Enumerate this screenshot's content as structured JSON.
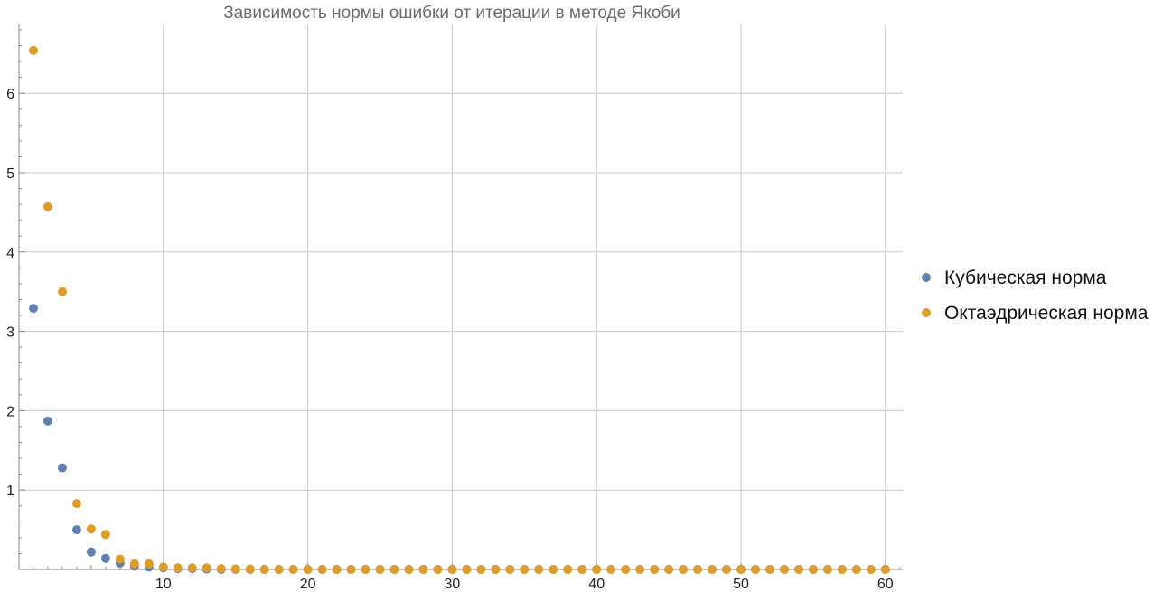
{
  "chart_data": {
    "type": "scatter",
    "title": "Зависимость нормы ошибки от итерации в методе Якоби",
    "xlabel": "",
    "ylabel": "",
    "xlim": [
      0,
      61
    ],
    "ylim": [
      0,
      6.9
    ],
    "x_ticks": [
      10,
      20,
      30,
      40,
      50,
      60
    ],
    "y_ticks": [
      1,
      2,
      3,
      4,
      5,
      6
    ],
    "grid": true,
    "legend_position": "right",
    "series": [
      {
        "name": "Кубическая норма",
        "color": "#5e81b5",
        "x": [
          1,
          2,
          3,
          4,
          5,
          6,
          7,
          8,
          9,
          10,
          11,
          12,
          13,
          14,
          15,
          16,
          17,
          18,
          19,
          20,
          21,
          22,
          23,
          24,
          25,
          26,
          27,
          28,
          29,
          30,
          31,
          32,
          33,
          34,
          35,
          36,
          37,
          38,
          39,
          40,
          41,
          42,
          43,
          44,
          45,
          46,
          47,
          48,
          49,
          50,
          51,
          52,
          53,
          54,
          55,
          56,
          57,
          58,
          59,
          60
        ],
        "y": [
          3.29,
          1.87,
          1.28,
          0.5,
          0.22,
          0.14,
          0.08,
          0.04,
          0.03,
          0.02,
          0.01,
          0.01,
          0.005,
          0,
          0,
          0,
          0,
          0,
          0,
          0,
          0,
          0,
          0,
          0,
          0,
          0,
          0,
          0,
          0,
          0,
          0,
          0,
          0,
          0,
          0,
          0,
          0,
          0,
          0,
          0,
          0,
          0,
          0,
          0,
          0,
          0,
          0,
          0,
          0,
          0,
          0,
          0,
          0,
          0,
          0,
          0,
          0,
          0,
          0,
          0
        ]
      },
      {
        "name": "Октаэдрическая норма",
        "color": "#e19c24",
        "x": [
          1,
          2,
          3,
          4,
          5,
          6,
          7,
          8,
          9,
          10,
          11,
          12,
          13,
          14,
          15,
          16,
          17,
          18,
          19,
          20,
          21,
          22,
          23,
          24,
          25,
          26,
          27,
          28,
          29,
          30,
          31,
          32,
          33,
          34,
          35,
          36,
          37,
          38,
          39,
          40,
          41,
          42,
          43,
          44,
          45,
          46,
          47,
          48,
          49,
          50,
          51,
          52,
          53,
          54,
          55,
          56,
          57,
          58,
          59,
          60
        ],
        "y": [
          6.54,
          4.57,
          3.5,
          0.83,
          0.51,
          0.44,
          0.13,
          0.07,
          0.07,
          0.03,
          0.02,
          0.02,
          0.02,
          0.01,
          0.005,
          0.005,
          0,
          0,
          0,
          0,
          0,
          0,
          0,
          0,
          0,
          0,
          0,
          0,
          0,
          0,
          0,
          0,
          0,
          0,
          0,
          0,
          0,
          0,
          0,
          0,
          0,
          0,
          0,
          0,
          0,
          0,
          0,
          0,
          0,
          0,
          0,
          0,
          0,
          0,
          0,
          0,
          0,
          0,
          0,
          0
        ]
      }
    ]
  }
}
